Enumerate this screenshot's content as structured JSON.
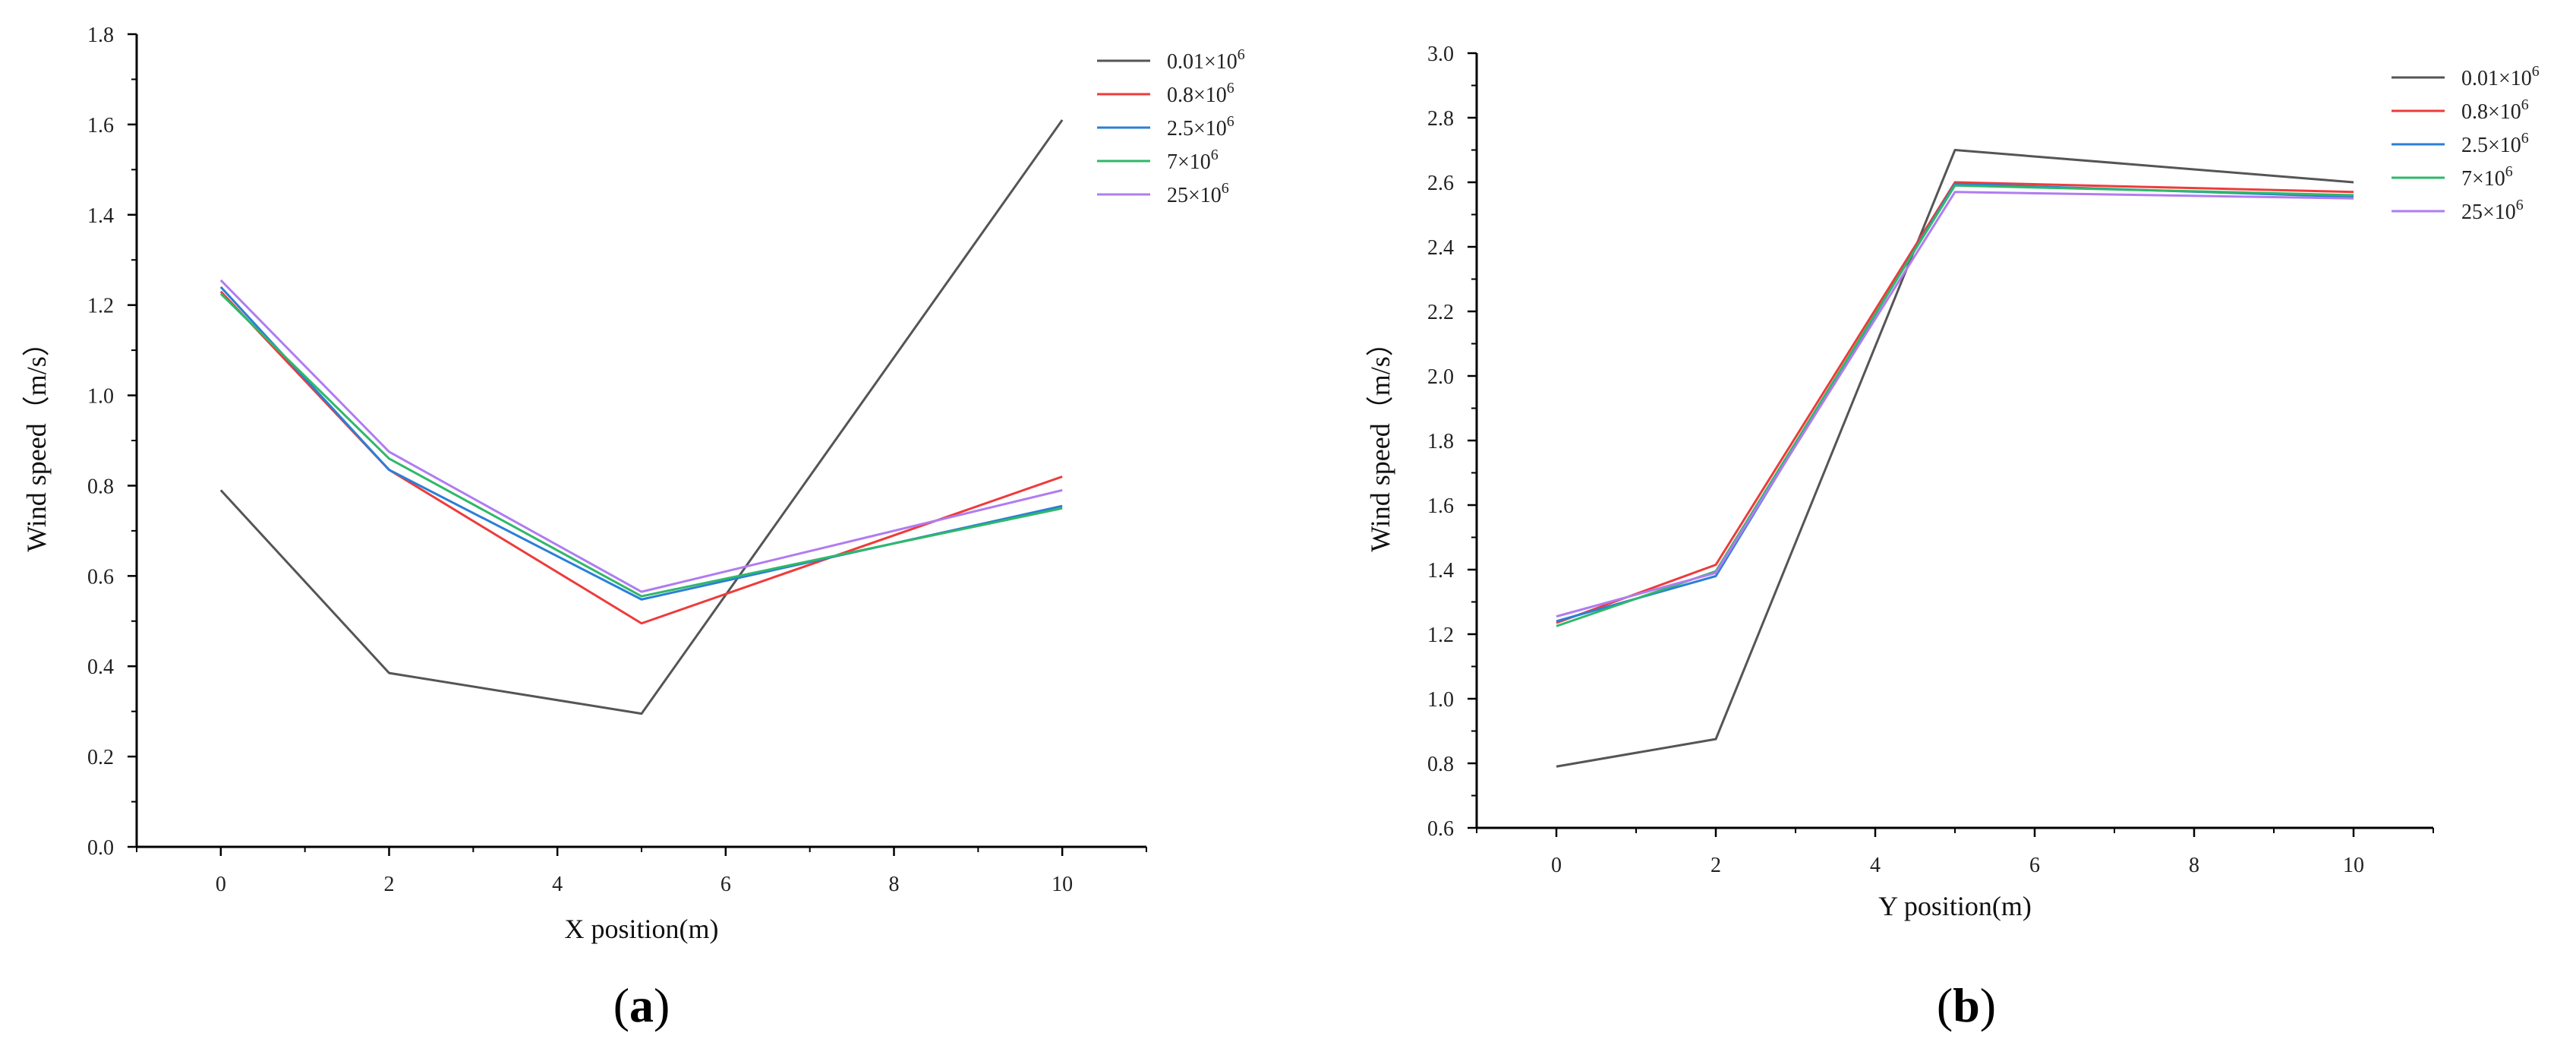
{
  "colors": {
    "0.01": "#555555",
    "0.8": "#ee3b3b",
    "2.5": "#2b7fd6",
    "7": "#2fb86a",
    "25": "#b07cf0",
    "axis": "#000000"
  },
  "chart_data": [
    {
      "type": "line",
      "panel_label": "(a)",
      "panel_letter": "a",
      "title": "",
      "xlabel": "X position(m)",
      "ylabel": "Wind speed（m/s）",
      "xlim": [
        -1,
        11
      ],
      "ylim": [
        0,
        1.8
      ],
      "xticks": [
        0,
        2,
        4,
        6,
        8,
        10
      ],
      "xtick_labels": [
        "0",
        "2",
        "4",
        "6",
        "8",
        "10"
      ],
      "yticks": [
        0,
        0.2,
        0.4,
        0.6,
        0.8,
        1.0,
        1.2,
        1.4,
        1.6,
        1.8
      ],
      "ytick_labels": [
        "0.0",
        "0.2",
        "0.4",
        "0.6",
        "0.8",
        "1.0",
        "1.2",
        "1.4",
        "1.6",
        "1.8"
      ],
      "legend_position": "top-right",
      "x": [
        0,
        2,
        5,
        10
      ],
      "series": [
        {
          "name": "0.01×10",
          "exp": "6",
          "color_key": "0.01",
          "values": [
            0.79,
            0.385,
            0.295,
            1.61
          ]
        },
        {
          "name": "0.8×10",
          "exp": "6",
          "color_key": "0.8",
          "values": [
            1.23,
            0.835,
            0.495,
            0.82
          ]
        },
        {
          "name": "2.5×10",
          "exp": "6",
          "color_key": "2.5",
          "values": [
            1.24,
            0.835,
            0.548,
            0.755
          ]
        },
        {
          "name": "7×10",
          "exp": "6",
          "color_key": "7",
          "values": [
            1.225,
            0.86,
            0.555,
            0.75
          ]
        },
        {
          "name": "25×10",
          "exp": "6",
          "color_key": "25",
          "values": [
            1.255,
            0.875,
            0.565,
            0.79
          ]
        }
      ]
    },
    {
      "type": "line",
      "panel_label": "(b)",
      "panel_letter": "b",
      "title": "",
      "xlabel": "Y position(m)",
      "ylabel": "Wind speed（m/s）",
      "xlim": [
        -1,
        11
      ],
      "ylim": [
        0.6,
        3.0
      ],
      "xticks": [
        0,
        2,
        4,
        6,
        8,
        10
      ],
      "xtick_labels": [
        "0",
        "2",
        "4",
        "6",
        "8",
        "10"
      ],
      "yticks": [
        0.6,
        0.8,
        1.0,
        1.2,
        1.4,
        1.6,
        1.8,
        2.0,
        2.2,
        2.4,
        2.6,
        2.8,
        3.0
      ],
      "ytick_labels": [
        "0.6",
        "0.8",
        "1.0",
        "1.2",
        "1.4",
        "1.6",
        "1.8",
        "2.0",
        "2.2",
        "2.4",
        "2.6",
        "2.8",
        "3.0"
      ],
      "legend_position": "top-right",
      "x": [
        0,
        2,
        5,
        10
      ],
      "series": [
        {
          "name": "0.01×10",
          "exp": "6",
          "color_key": "0.01",
          "values": [
            0.79,
            0.875,
            2.7,
            2.6
          ]
        },
        {
          "name": "0.8×10",
          "exp": "6",
          "color_key": "0.8",
          "values": [
            1.235,
            1.415,
            2.6,
            2.57
          ]
        },
        {
          "name": "2.5×10",
          "exp": "6",
          "color_key": "2.5",
          "values": [
            1.24,
            1.38,
            2.595,
            2.555
          ]
        },
        {
          "name": "7×10",
          "exp": "6",
          "color_key": "7",
          "values": [
            1.225,
            1.395,
            2.59,
            2.56
          ]
        },
        {
          "name": "25×10",
          "exp": "6",
          "color_key": "25",
          "values": [
            1.255,
            1.39,
            2.57,
            2.55
          ]
        }
      ]
    }
  ]
}
